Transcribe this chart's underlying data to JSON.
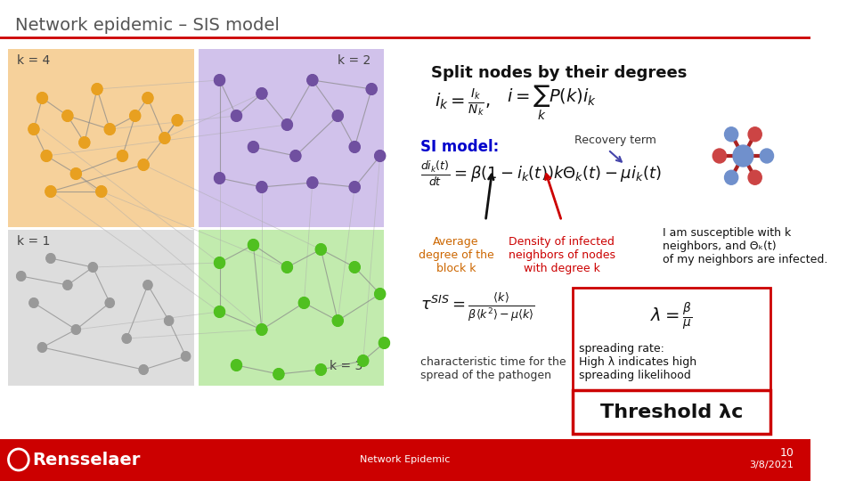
{
  "title": "Network epidemic – SIS model",
  "title_color": "#555555",
  "bg_color": "#ffffff",
  "footer_color": "#cc0000",
  "footer_text": "Network Epidemic",
  "footer_page": "10",
  "footer_date": "3/8/2021",
  "footer_org": "Rensselaer",
  "slide_title_line_color": "#cc0000",
  "heading": "Split nodes by their degrees",
  "block_colors": {
    "k4": "#f5c98a",
    "k2": "#c9b8e8",
    "k1": "#d8d8d8",
    "k3": "#b8e8a0"
  },
  "node_colors": {
    "k4_filled": "#e8a020",
    "k4_open": "#e8a020",
    "k2_filled": "#7050a0",
    "k2_open": "#7050a0",
    "k1_filled": "#999999",
    "k1_open": "#999999",
    "k3_filled": "#50c020",
    "k3_open": "#50c020"
  },
  "si_model_label": "SI model:",
  "si_model_color": "#0000cc",
  "recovery_term_label": "Recovery term",
  "avg_degree_label": "Average\ndegree of the\nblock k",
  "avg_degree_color": "#cc6600",
  "density_label": "Density of infected\nneighbors of nodes\nwith degree k",
  "density_color": "#cc0000",
  "susceptible_label": "I am susceptible with k\nneighbors, and Θₖ(t)\nof my neighbors are infected.",
  "tau_sis_label": "characteristic time for the\nspread of the pathogen",
  "spreading_rate_label": "spreading rate:\nHigh λ indicates high\nspreading likelihood",
  "threshold_label": "Threshold λc",
  "box_border_color": "#cc0000"
}
